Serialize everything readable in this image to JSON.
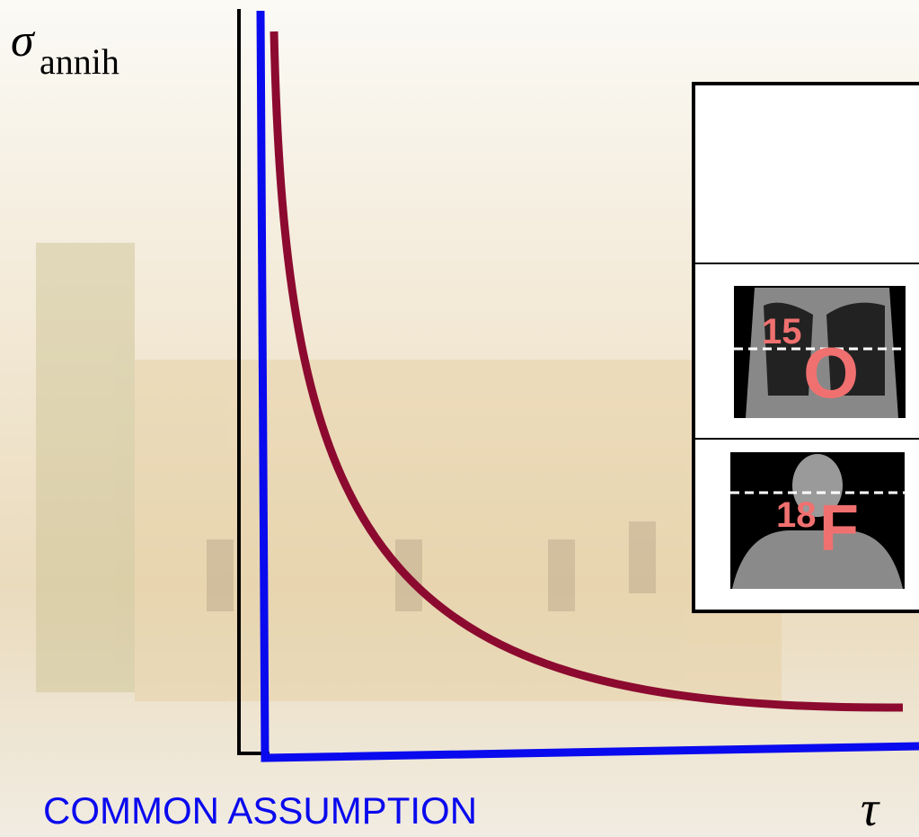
{
  "y_label": {
    "symbol": "σ",
    "subscript": "annih"
  },
  "x_label": "τ",
  "caption": "COMMON ASSUMPTION",
  "panels": [
    {
      "mass": "15",
      "element": "O"
    },
    {
      "mass": "18",
      "element": "F"
    }
  ]
}
